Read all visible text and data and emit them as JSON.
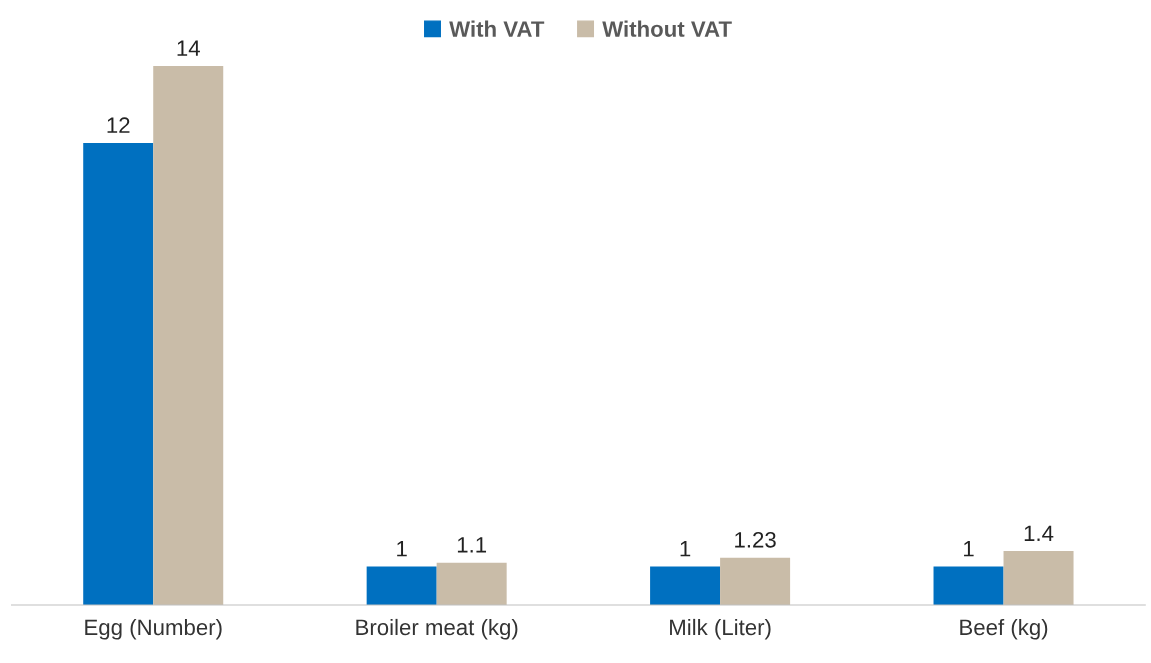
{
  "chart_data": {
    "type": "bar",
    "categories": [
      "Egg (Number)",
      "Broiler meat (kg)",
      "Milk (Liter)",
      "Beef (kg)"
    ],
    "series": [
      {
        "name": "With VAT",
        "color": "#0070c0",
        "values": [
          12,
          1,
          1,
          1
        ]
      },
      {
        "name": "Without VAT",
        "color": "#c9bca8",
        "values": [
          14,
          1.1,
          1.23,
          1.4
        ]
      }
    ],
    "data_labels": true,
    "legend": "top",
    "grid": false
  }
}
